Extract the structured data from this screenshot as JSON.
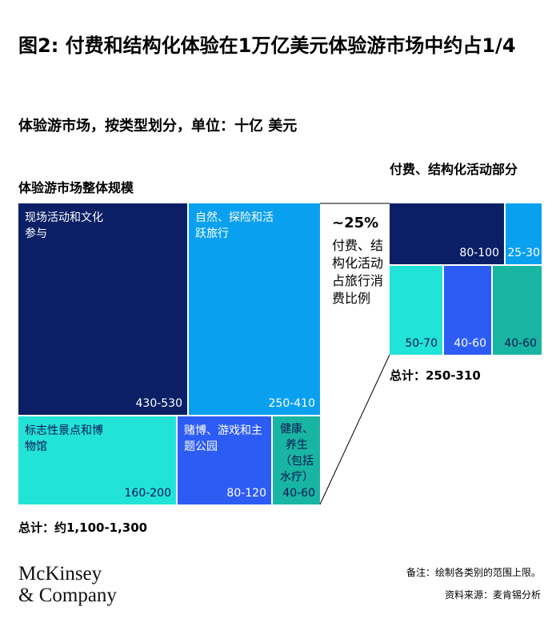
{
  "title": "图2: 付费和结构化体验在1万亿美元体验游市场中约占1/4",
  "subtitle": "体验游市场，按类型划分，单位：十亿 美元",
  "chart_data": [
    {
      "type": "treemap",
      "title": "体验游市场整体规模",
      "categories": [
        "现场活动和文化参与",
        "自然、探险和活跃旅行",
        "标志性景点和博物馆",
        "赌博、游戏和主题公园",
        "健康、养生（包括水疗）"
      ],
      "values": [
        "430-530",
        "250-410",
        "160-200",
        "80-120",
        "40-60"
      ],
      "total": "总计：约1,100-1,300",
      "colors": [
        "#0b1f66",
        "#0aa0f0",
        "#22e3d8",
        "#2d5cf5",
        "#19b5a3"
      ]
    },
    {
      "type": "treemap",
      "title": "付费、结构化活动部分",
      "values": [
        "80-100",
        "25-30",
        "50-70",
        "40-60",
        "40-60"
      ],
      "total": "总计：250-310",
      "colors": [
        "#0b1f66",
        "#0aa0f0",
        "#22e3d8",
        "#2d5cf5",
        "#19b5a3"
      ]
    }
  ],
  "share": {
    "percent": "~25%",
    "text": "付费、结构化活动占旅行消费比例"
  },
  "logo": {
    "line1": "McKinsey",
    "line2": "& Company"
  },
  "footnote": "备注：绘制各类别的范围上限。",
  "source": "资料来源：麦肯锡分析"
}
